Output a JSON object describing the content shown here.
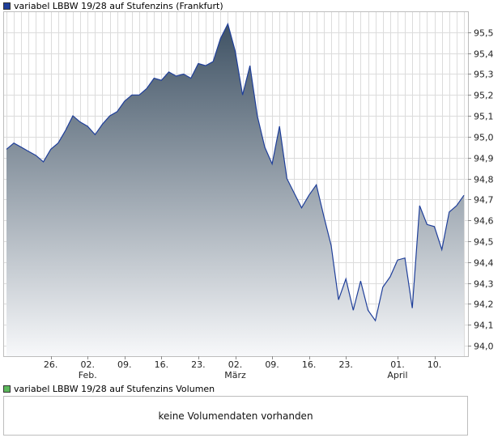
{
  "legend": {
    "price_series": "variabel LBBW 19/28 auf Stufenzins (Frankfurt)",
    "price_color": "#1f3f9a",
    "volume_series": "variabel LBBW 19/28 auf Stufenzins Volumen",
    "volume_color": "#5cb85c"
  },
  "volume_panel": {
    "message": "keine Volumendaten vorhanden"
  },
  "chart_data": {
    "type": "area",
    "title": "variabel LBBW 19/28 auf Stufenzins (Frankfurt)",
    "xlabel": "",
    "ylabel": "",
    "ylim": [
      93.95,
      95.6
    ],
    "y_ticks": [
      "95,5",
      "95,4",
      "95,3",
      "95,2",
      "95,1",
      "95,0",
      "94,9",
      "94,8",
      "94,7",
      "94,6",
      "94,5",
      "94,4",
      "94,3",
      "94,2",
      "94,1",
      "94,0"
    ],
    "x_tick_labels": [
      {
        "index": 6,
        "label": "26.",
        "sub": ""
      },
      {
        "index": 11,
        "label": "02.",
        "sub": "Feb."
      },
      {
        "index": 16,
        "label": "09.",
        "sub": ""
      },
      {
        "index": 21,
        "label": "16.",
        "sub": ""
      },
      {
        "index": 26,
        "label": "23.",
        "sub": ""
      },
      {
        "index": 31,
        "label": "02.",
        "sub": "März"
      },
      {
        "index": 36,
        "label": "09.",
        "sub": ""
      },
      {
        "index": 41,
        "label": "16.",
        "sub": ""
      },
      {
        "index": 46,
        "label": "23.",
        "sub": ""
      },
      {
        "index": 53,
        "label": "01.",
        "sub": "April"
      },
      {
        "index": 58,
        "label": "10.",
        "sub": ""
      }
    ],
    "grid": true,
    "legend_position": "top-left",
    "series": [
      {
        "name": "variabel LBBW 19/28 auf Stufenzins (Frankfurt)",
        "values": [
          94.94,
          94.97,
          94.95,
          94.93,
          94.91,
          94.88,
          94.94,
          94.97,
          95.03,
          95.1,
          95.07,
          95.05,
          95.01,
          95.06,
          95.1,
          95.12,
          95.17,
          95.2,
          95.2,
          95.23,
          95.28,
          95.27,
          95.31,
          95.29,
          95.3,
          95.28,
          95.35,
          95.34,
          95.36,
          95.47,
          95.54,
          95.41,
          95.2,
          95.34,
          95.1,
          94.95,
          94.87,
          95.05,
          94.8,
          94.73,
          94.66,
          94.72,
          94.77,
          94.62,
          94.48,
          94.22,
          94.32,
          94.17,
          94.31,
          94.17,
          94.12,
          94.28,
          94.33,
          94.41,
          94.42,
          94.18,
          94.67,
          94.58,
          94.57,
          94.46,
          94.64,
          94.67,
          94.72
        ]
      }
    ]
  }
}
